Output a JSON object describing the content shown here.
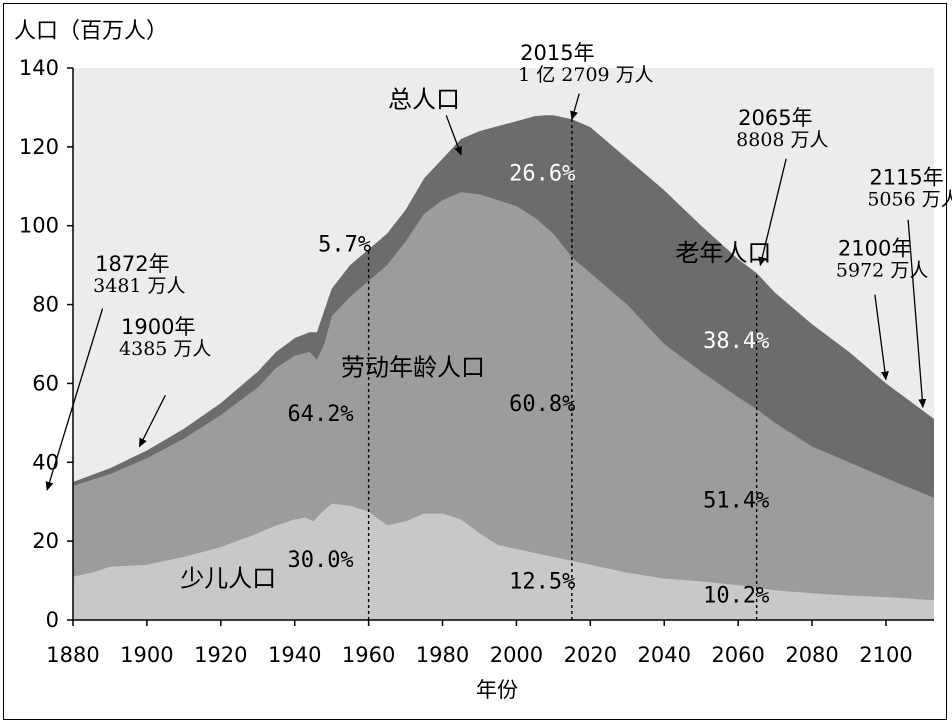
{
  "chart_data": {
    "type": "area",
    "title": "",
    "ylabel": "人口（百万人）",
    "xlabel": "年份",
    "xlim": [
      1880,
      2113
    ],
    "ylim": [
      0,
      140
    ],
    "x_ticks": [
      1880,
      1900,
      1920,
      1940,
      1960,
      1980,
      2000,
      2020,
      2040,
      2060,
      2080,
      2100
    ],
    "y_ticks": [
      0,
      20,
      40,
      60,
      80,
      100,
      120,
      140
    ],
    "colors": {
      "plot_bg": "#ececec",
      "children": "#c8c8c8",
      "working": "#9c9c9c",
      "elderly": "#6c6c6c"
    },
    "series": [
      {
        "name": "少儿人口",
        "key": "children",
        "points": [
          [
            1880,
            11
          ],
          [
            1885,
            12
          ],
          [
            1890,
            13.5
          ],
          [
            1900,
            14
          ],
          [
            1910,
            16
          ],
          [
            1920,
            18.5
          ],
          [
            1930,
            22
          ],
          [
            1935,
            24
          ],
          [
            1940,
            25.5
          ],
          [
            1943,
            26
          ],
          [
            1945,
            25
          ],
          [
            1947,
            27
          ],
          [
            1950,
            29.5
          ],
          [
            1955,
            29
          ],
          [
            1960,
            27.5
          ],
          [
            1965,
            24
          ],
          [
            1970,
            25
          ],
          [
            1975,
            27
          ],
          [
            1980,
            27
          ],
          [
            1985,
            25.5
          ],
          [
            1990,
            22
          ],
          [
            1995,
            19
          ],
          [
            2000,
            18
          ],
          [
            2005,
            17
          ],
          [
            2010,
            16
          ],
          [
            2015,
            15
          ],
          [
            2020,
            14
          ],
          [
            2030,
            12
          ],
          [
            2040,
            10.5
          ],
          [
            2050,
            9.8
          ],
          [
            2060,
            8.8
          ],
          [
            2065,
            8.3
          ],
          [
            2070,
            7.5
          ],
          [
            2080,
            6.8
          ],
          [
            2090,
            6.2
          ],
          [
            2100,
            5.8
          ],
          [
            2113,
            5
          ]
        ]
      },
      {
        "name": "劳动年龄人口",
        "key": "working",
        "points": [
          [
            1880,
            34
          ],
          [
            1890,
            37
          ],
          [
            1900,
            41
          ],
          [
            1910,
            46
          ],
          [
            1920,
            52
          ],
          [
            1930,
            59
          ],
          [
            1935,
            64
          ],
          [
            1940,
            67
          ],
          [
            1944,
            68
          ],
          [
            1946,
            66
          ],
          [
            1948,
            70
          ],
          [
            1950,
            77
          ],
          [
            1955,
            82
          ],
          [
            1960,
            86
          ],
          [
            1965,
            90
          ],
          [
            1970,
            96
          ],
          [
            1975,
            103
          ],
          [
            1980,
            106.5
          ],
          [
            1985,
            108.5
          ],
          [
            1990,
            108
          ],
          [
            1995,
            106.5
          ],
          [
            2000,
            105
          ],
          [
            2005,
            102
          ],
          [
            2010,
            98
          ],
          [
            2015,
            92
          ],
          [
            2020,
            88
          ],
          [
            2030,
            80
          ],
          [
            2040,
            70
          ],
          [
            2050,
            63
          ],
          [
            2060,
            56.5
          ],
          [
            2065,
            53.5
          ],
          [
            2070,
            50
          ],
          [
            2080,
            44
          ],
          [
            2090,
            40
          ],
          [
            2100,
            36
          ],
          [
            2113,
            31
          ]
        ]
      },
      {
        "name": "总人口",
        "key": "elderly",
        "points": [
          [
            1880,
            35
          ],
          [
            1890,
            38.5
          ],
          [
            1900,
            43
          ],
          [
            1910,
            48.5
          ],
          [
            1920,
            55
          ],
          [
            1930,
            63
          ],
          [
            1935,
            68
          ],
          [
            1940,
            71.5
          ],
          [
            1944,
            73
          ],
          [
            1946,
            73
          ],
          [
            1950,
            84
          ],
          [
            1955,
            90
          ],
          [
            1960,
            94
          ],
          [
            1965,
            98
          ],
          [
            1970,
            104
          ],
          [
            1975,
            112
          ],
          [
            1980,
            117
          ],
          [
            1985,
            122
          ],
          [
            1990,
            124
          ],
          [
            2000,
            126.5
          ],
          [
            2005,
            127.8
          ],
          [
            2008,
            128
          ],
          [
            2010,
            128
          ],
          [
            2015,
            127
          ],
          [
            2020,
            125
          ],
          [
            2030,
            117
          ],
          [
            2040,
            109
          ],
          [
            2050,
            100
          ],
          [
            2060,
            91.5
          ],
          [
            2065,
            88
          ],
          [
            2070,
            83
          ],
          [
            2080,
            75
          ],
          [
            2090,
            68
          ],
          [
            2100,
            60
          ],
          [
            2113,
            51
          ]
        ]
      }
    ],
    "vlines": [
      1960,
      2015,
      2065
    ],
    "labels": {
      "children": "少儿人口",
      "working": "劳动年龄人口",
      "elderly": "老年人口",
      "total": "总人口"
    },
    "percentages": [
      {
        "text": "5.7%",
        "x": 1953.5,
        "y": 93.5
      },
      {
        "text": "64.2%",
        "x": 1947,
        "y": 50.5
      },
      {
        "text": "30.0%",
        "x": 1947,
        "y": 13.5
      },
      {
        "text": "26.6%",
        "x": 2007,
        "y": 111.5
      },
      {
        "text": "60.8%",
        "x": 2007,
        "y": 53
      },
      {
        "text": "12.5%",
        "x": 2007,
        "y": 8
      },
      {
        "text": "38.4%",
        "x": 2059.5,
        "y": 69
      },
      {
        "text": "51.4%",
        "x": 2059.5,
        "y": 28.5
      },
      {
        "text": "10.2%",
        "x": 2059.5,
        "y": 4.5
      }
    ],
    "annotations": [
      {
        "year": "1872年",
        "value": "3481 万人",
        "tx": 1886,
        "ty": 88.5,
        "from": [
          1888,
          79
        ],
        "to": [
          1873,
          33
        ]
      },
      {
        "year": "1900年",
        "value": "4385 万人",
        "tx": 1893,
        "ty": 72.5,
        "from": [
          1905,
          57
        ],
        "to": [
          1898,
          44
        ]
      },
      {
        "year": "2015年",
        "value": "1 亿 2709 万人",
        "tx": 2001,
        "ty": 142,
        "from": [
          2017,
          133.5
        ],
        "to": [
          2015,
          127
        ]
      },
      {
        "year": "2065年",
        "value": "8808 万人",
        "tx": 2060,
        "ty": 125.5,
        "from": [
          2073,
          117
        ],
        "to": [
          2066,
          90
        ]
      },
      {
        "year": "2100年",
        "value": "5972 万人",
        "tx": 2087,
        "ty": 92.5,
        "from": [
          2097,
          82.5
        ],
        "to": [
          2100,
          61
        ]
      },
      {
        "year": "2115年",
        "value": "5056 万人",
        "tx": 2095.5,
        "ty": 110.5,
        "from": [
          2106,
          101.5
        ],
        "to": [
          2110,
          54
        ]
      }
    ],
    "series_labels_pos": {
      "total": {
        "x": 1975,
        "y": 130,
        "arrow_from": [
          1981,
          128
        ],
        "arrow_to": [
          1985,
          118
        ]
      },
      "working": {
        "x": 1972,
        "y": 62
      },
      "elderly": {
        "x": 2056,
        "y": 91
      },
      "children": {
        "x": 1922,
        "y": 8.5
      }
    }
  }
}
